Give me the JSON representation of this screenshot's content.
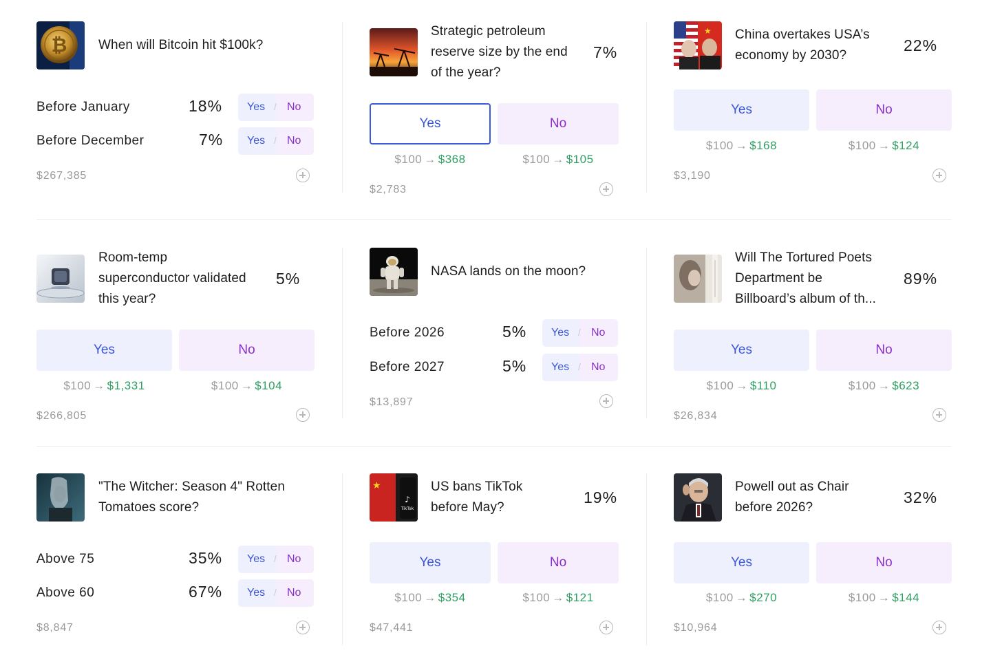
{
  "colors": {
    "yes": "#3a56d6",
    "no": "#8a2fc9",
    "payout_gain": "#2e9e62",
    "muted": "#9a9a9a"
  },
  "markets": {
    "bitcoin": {
      "title": "When will Bitcoin hit $100k?",
      "thumbnail": "bitcoin-coin-image",
      "outcomes": [
        {
          "label": "Before January",
          "pct": "18%",
          "yes": "Yes",
          "no": "No"
        },
        {
          "label": "Before December",
          "pct": "7%",
          "yes": "Yes",
          "no": "No"
        }
      ],
      "volume": "$267,385"
    },
    "spr": {
      "title": [
        "Strategic petroleum",
        "reserve size by the end",
        "of the year?"
      ],
      "thumbnail": "oil-pump-sunset-image",
      "pct": "7%",
      "yes": "Yes",
      "no": "No",
      "yes_selected": true,
      "payout_yes": {
        "from": "$100",
        "arrow": "→",
        "to": "$368"
      },
      "payout_no": {
        "from": "$100",
        "arrow": "→",
        "to": "$105"
      },
      "volume": "$2,783"
    },
    "china": {
      "title": [
        "China overtakes USA’s",
        "economy by 2030?"
      ],
      "thumbnail": "us-china-leaders-image",
      "pct": "22%",
      "yes": "Yes",
      "no": "No",
      "payout_yes": {
        "from": "$100",
        "arrow": "→",
        "to": "$168"
      },
      "payout_no": {
        "from": "$100",
        "arrow": "→",
        "to": "$124"
      },
      "volume": "$3,190"
    },
    "superconductor": {
      "title": [
        "Room-temp",
        "superconductor validated",
        "this year?"
      ],
      "thumbnail": "levitating-superconductor-image",
      "pct": "5%",
      "yes": "Yes",
      "no": "No",
      "payout_yes": {
        "from": "$100",
        "arrow": "→",
        "to": "$1,331"
      },
      "payout_no": {
        "from": "$100",
        "arrow": "→",
        "to": "$104"
      },
      "volume": "$266,805"
    },
    "nasa": {
      "title": "NASA lands on the moon?",
      "thumbnail": "astronaut-on-moon-image",
      "outcomes": [
        {
          "label": "Before 2026",
          "pct": "5%",
          "yes": "Yes",
          "no": "No"
        },
        {
          "label": "Before 2027",
          "pct": "5%",
          "yes": "Yes",
          "no": "No"
        }
      ],
      "volume": "$13,897"
    },
    "ttpd": {
      "title": [
        "Will The Tortured Poets",
        "Department be",
        "Billboard’s album of th..."
      ],
      "thumbnail": "album-cover-image",
      "pct": "89%",
      "yes": "Yes",
      "no": "No",
      "payout_yes": {
        "from": "$100",
        "arrow": "→",
        "to": "$110"
      },
      "payout_no": {
        "from": "$100",
        "arrow": "→",
        "to": "$623"
      },
      "volume": "$26,834"
    },
    "witcher": {
      "title": [
        "\"The Witcher: Season 4\" Rotten",
        "Tomatoes score?"
      ],
      "thumbnail": "witcher-character-image",
      "outcomes": [
        {
          "label": "Above 75",
          "pct": "35%",
          "yes": "Yes",
          "no": "No"
        },
        {
          "label": "Above 60",
          "pct": "67%",
          "yes": "Yes",
          "no": "No"
        }
      ],
      "volume": "$8,847"
    },
    "tiktok": {
      "title": [
        "US bans TikTok",
        "before May?"
      ],
      "thumbnail": "tiktok-china-flag-image",
      "thumb_text": "TikTok",
      "pct": "19%",
      "yes": "Yes",
      "no": "No",
      "payout_yes": {
        "from": "$100",
        "arrow": "→",
        "to": "$354"
      },
      "payout_no": {
        "from": "$100",
        "arrow": "→",
        "to": "$121"
      },
      "volume": "$47,441"
    },
    "powell": {
      "title": [
        "Powell out as Chair",
        "before 2026?"
      ],
      "thumbnail": "powell-portrait-image",
      "pct": "32%",
      "yes": "Yes",
      "no": "No",
      "payout_yes": {
        "from": "$100",
        "arrow": "→",
        "to": "$270"
      },
      "payout_no": {
        "from": "$100",
        "arrow": "→",
        "to": "$144"
      },
      "volume": "$10,964"
    }
  }
}
